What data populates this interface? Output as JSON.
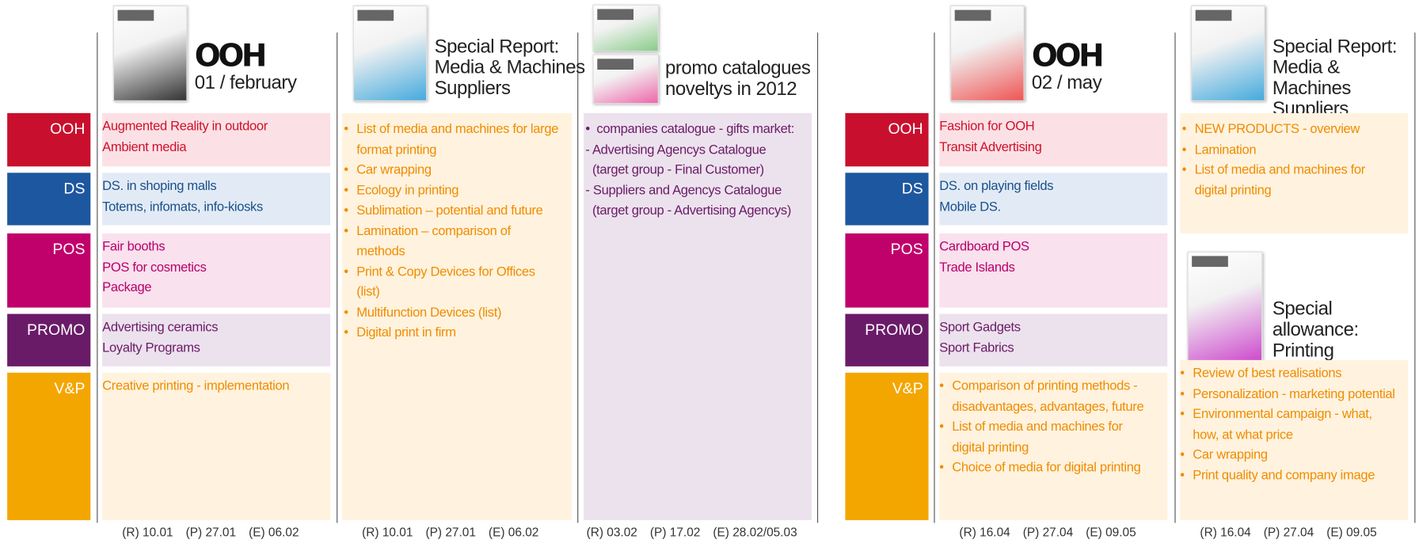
{
  "row_labels": [
    "OOH",
    "DS",
    "POS",
    "PROMO",
    "V&P"
  ],
  "issues": [
    {
      "logo": "OOH",
      "title": [
        "01 / february"
      ],
      "sections": [
        [
          "Augmented Reality in outdoor",
          "Ambient media"
        ],
        [
          "DS. in shoping malls",
          "Totems, infomats, info-kiosks"
        ],
        [
          "Fair booths",
          "POS for cosmetics",
          "Package"
        ],
        [
          "Advertising ceramics",
          "Loyalty Programs"
        ],
        [
          "Creative printing - implementation"
        ]
      ],
      "bullets": [
        false,
        false,
        false,
        false,
        false
      ],
      "dates": [
        "(R) 10.01",
        "(P) 27.01",
        "(E) 06.02"
      ]
    },
    {
      "title": [
        "Special Report:",
        "Media & Machines",
        "Suppliers"
      ],
      "box": {
        "bullets": true,
        "items": [
          "List of media and machines for large format printing",
          "Car wrapping",
          "Ecology in printing",
          "Sublimation – potential and future",
          "Lamination – comparison of methods",
          "Print & Copy Devices for Offices (list)",
          "Multifunction Devices (list)",
          "Digital print in firm"
        ]
      },
      "dates": [
        "(R) 10.01",
        "(P) 27.01",
        "(E) 06.02"
      ]
    },
    {
      "title": [
        "promo catalogues",
        "noveltys in 2012"
      ],
      "box": {
        "bullets": false,
        "items": [
          "•  companies catalogue - gifts market:",
          "- Advertising Agencys Catalogue",
          "  (target group - Final Customer)",
          "- Suppliers and Agencys Catalogue",
          "  (target group - Advertising Agencys)"
        ]
      },
      "dates": [
        "(R) 03.02",
        "(P) 17.02",
        "(E) 28.02/05.03"
      ]
    },
    {
      "logo": "OOH",
      "title": [
        "02 / may"
      ],
      "sections": [
        [
          "Fashion for OOH",
          "Transit Advertising"
        ],
        [
          "DS. on playing fields",
          "Mobile DS."
        ],
        [
          "Cardboard POS",
          "Trade Islands"
        ],
        [
          "Sport Gadgets",
          "Sport Fabrics"
        ],
        [
          "Comparison of printing methods - disadvantages, advantages, future",
          "List of media and machines for digital printing",
          "Choice of media for digital printing"
        ]
      ],
      "bullets": [
        false,
        false,
        false,
        false,
        true
      ],
      "dates": [
        "(R) 16.04",
        "(P) 27.04",
        "(E) 09.05"
      ]
    },
    {
      "title": [
        "Special Report:",
        "Media & Machines",
        "Suppliers"
      ],
      "box": {
        "bullets": true,
        "items": [
          "NEW PRODUCTS - overview",
          "Lamination",
          "List of media and machines for digital printing"
        ]
      },
      "box2": {
        "title": [
          "Special allowance:",
          "Printing"
        ],
        "bullets": true,
        "items": [
          "Review of best realisations",
          "Personalization - marketing potential",
          "Environmental campaign - what, how, at what price",
          "Car wrapping",
          "Print quality and company image"
        ]
      },
      "dates": [
        "(R) 16.04",
        "(P) 27.04",
        "(E) 09.05"
      ]
    }
  ]
}
